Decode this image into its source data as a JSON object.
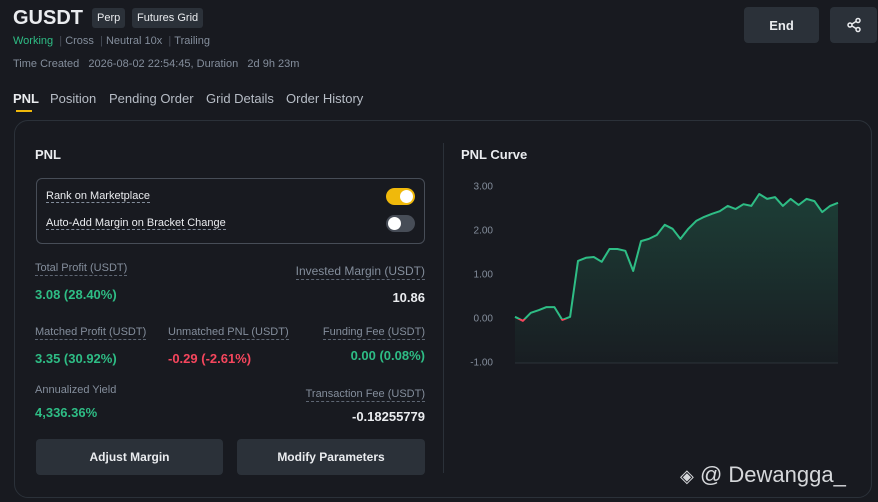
{
  "header": {
    "symbol": "GUSDT",
    "badges": [
      "Perp",
      "Futures Grid"
    ],
    "status": [
      "Working",
      "Cross",
      "Neutral 10x",
      "Trailing"
    ],
    "time_label": "Time Created",
    "time_value": "2026-08-02 22:54:45, Duration",
    "duration": "2d 9h 23m"
  },
  "actions": {
    "end": "End"
  },
  "tabs": [
    "PNL",
    "Position",
    "Pending Order",
    "Grid Details",
    "Order History"
  ],
  "pnl": {
    "title": "PNL",
    "toggles": [
      {
        "label": "Rank on Marketplace",
        "on": true
      },
      {
        "label": "Auto-Add Margin on Bracket Change",
        "on": false
      }
    ],
    "stats": [
      {
        "label": "Total Profit (USDT)",
        "value": "3.08 (28.40%)"
      },
      {
        "label": "Invested Margin (USDT)",
        "value": "10.86"
      },
      {
        "label": "Matched Profit (USDT)",
        "value": "3.35 (30.92%)"
      },
      {
        "label": "Unmatched PNL (USDT)",
        "value": "-0.29 (-2.61%)"
      },
      {
        "label": "Funding Fee (USDT)",
        "value": "0.00 (0.08%)"
      },
      {
        "label": "Annualized Yield",
        "value": "4,336.36%"
      },
      {
        "label": "Transaction Fee (USDT)",
        "value": "-0.18255779"
      }
    ],
    "buttons": [
      "Adjust Margin",
      "Modify Parameters"
    ]
  },
  "pnl_curve": {
    "type": "line",
    "title": "PNL Curve",
    "values": [
      0.05,
      -0.04,
      0.14,
      0.2,
      0.27,
      0.27,
      -0.02,
      0.05,
      1.32,
      1.39,
      1.41,
      1.3,
      1.59,
      1.59,
      1.55,
      1.09,
      1.77,
      1.82,
      1.91,
      2.14,
      2.05,
      1.82,
      2.05,
      2.23,
      2.32,
      2.39,
      2.45,
      2.57,
      2.5,
      2.61,
      2.57,
      2.84,
      2.73,
      2.77,
      2.57,
      2.73,
      2.59,
      2.73,
      2.68,
      2.43,
      2.57,
      2.64
    ],
    "ylim": [
      -1,
      3
    ],
    "yticks": [
      {
        "value": 3,
        "label": "3.00"
      },
      {
        "value": 2,
        "label": "2.00"
      },
      {
        "value": 1,
        "label": "1.00"
      },
      {
        "value": 0,
        "label": "0.00"
      },
      {
        "value": -1,
        "label": "-1.00"
      }
    ],
    "up_color": "#2ebd85",
    "down_color": "#f6465d"
  },
  "watermark": "@ Dewangga_"
}
